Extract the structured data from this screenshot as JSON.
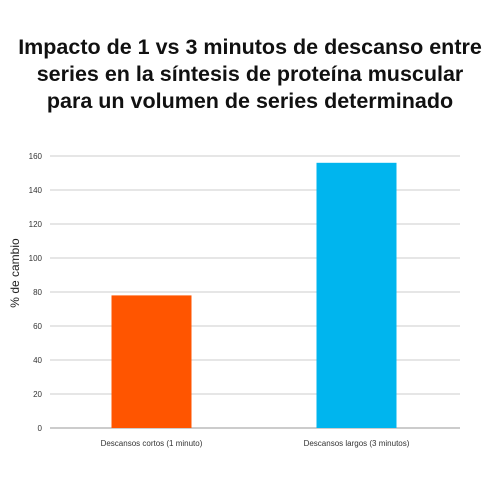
{
  "chart_data": {
    "type": "bar",
    "title": "Impacto de 1 vs 3 minutos de descanso entre\nseries  en la síntesis de proteína muscular\npara un volumen de series determinado",
    "xlabel": "",
    "ylabel": "% de cambio",
    "categories": [
      "Descansos cortos (1 minuto)",
      "Descansos largos (3 minutos)"
    ],
    "values": [
      78,
      156
    ],
    "bar_colors": [
      "#ff5500",
      "#00b5ee"
    ],
    "ylim": [
      0,
      160
    ],
    "yticks": [
      0,
      20,
      40,
      60,
      80,
      100,
      120,
      140,
      160
    ],
    "grid": true,
    "grid_color": "#cccccc",
    "legend": false
  }
}
